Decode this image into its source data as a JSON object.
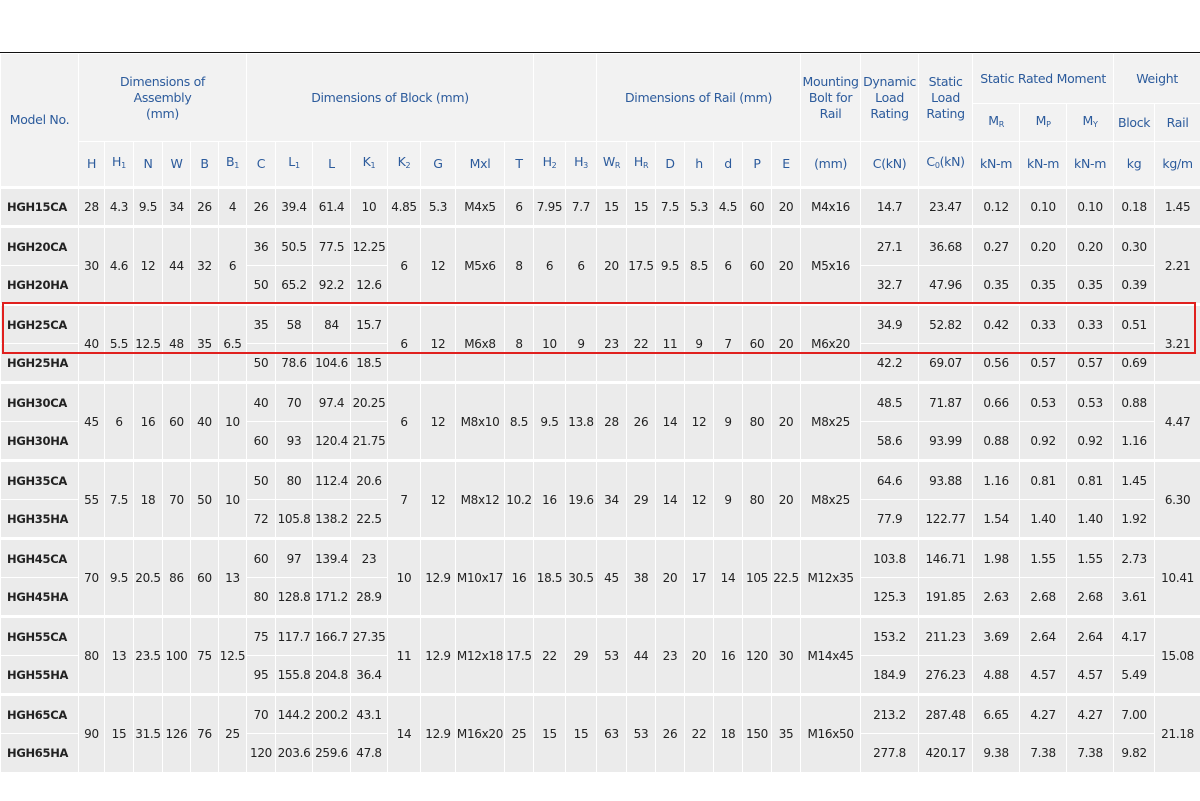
{
  "table": {
    "header": {
      "model_no": "Model No.",
      "assembly": "Dimensions of Assembly (mm)",
      "block": "Dimensions of Block (mm)",
      "rail": "Dimensions of Rail (mm)",
      "bolt": "Mounting Bolt for Rail",
      "dynamic": "Dynamic Load Rating",
      "static": "Static Load Rating",
      "moment": "Static Rated Moment",
      "weight": "Weight",
      "symbols": [
        "H",
        {
          "t": "H",
          "sub": "1"
        },
        "N",
        "W",
        "B",
        {
          "t": "B",
          "sub": "1"
        },
        "C",
        {
          "t": "L",
          "sub": "1"
        },
        "L",
        {
          "t": "K",
          "sub": "1"
        },
        {
          "t": "K",
          "sub": "2"
        },
        "G",
        "Mxl",
        "T",
        {
          "t": "H",
          "sub": "2"
        },
        {
          "t": "H",
          "sub": "3"
        },
        {
          "t": "W",
          "sub": "R"
        },
        {
          "t": "H",
          "sub": "R"
        },
        "D",
        "h",
        "d",
        "P",
        "E"
      ],
      "bolt_unit": "(mm)",
      "dynamic_unit": "C(kN)",
      "static_unit": {
        "t": "C",
        "sub": "0",
        "after": "(kN)"
      },
      "moment_symbols": [
        {
          "t": "M",
          "sub": "R"
        },
        {
          "t": "M",
          "sub": "P"
        },
        {
          "t": "M",
          "sub": "Y"
        }
      ],
      "moment_units": [
        "kN-m",
        "kN-m",
        "kN-m"
      ],
      "weight_cols": [
        "Block",
        "Rail"
      ],
      "weight_units": [
        "kg",
        "kg/m"
      ]
    },
    "groups": [
      {
        "shared": [
          "28",
          "4.3",
          "9.5",
          "34",
          "26",
          "4",
          "4.85",
          "5.3",
          "M4x5",
          "6",
          "7.95",
          "7.7",
          "15",
          "15",
          "7.5",
          "5.3",
          "4.5",
          "60",
          "20",
          "M4x16",
          "1.45"
        ],
        "rows": [
          [
            "HGH15CA",
            "26",
            "39.4",
            "61.4",
            "10",
            "14.7",
            "23.47",
            "0.12",
            "0.10",
            "0.10",
            "0.18"
          ]
        ]
      },
      {
        "shared": [
          "30",
          "4.6",
          "12",
          "44",
          "32",
          "6",
          "6",
          "12",
          "M5x6",
          "8",
          "6",
          "6",
          "20",
          "17.5",
          "9.5",
          "8.5",
          "6",
          "60",
          "20",
          "M5x16",
          "2.21"
        ],
        "rows": [
          [
            "HGH20CA",
            "36",
            "50.5",
            "77.5",
            "12.25",
            "27.1",
            "36.68",
            "0.27",
            "0.20",
            "0.20",
            "0.30"
          ],
          [
            "HGH20HA",
            "50",
            "65.2",
            "92.2",
            "12.6",
            "32.7",
            "47.96",
            "0.35",
            "0.35",
            "0.35",
            "0.39"
          ]
        ]
      },
      {
        "shared": [
          "40",
          "5.5",
          "12.5",
          "48",
          "35",
          "6.5",
          "6",
          "12",
          "M6x8",
          "8",
          "10",
          "9",
          "23",
          "22",
          "11",
          "9",
          "7",
          "60",
          "20",
          "M6x20",
          "3.21"
        ],
        "rows": [
          [
            "HGH25CA",
            "35",
            "58",
            "84",
            "15.7",
            "34.9",
            "52.82",
            "0.42",
            "0.33",
            "0.33",
            "0.51"
          ],
          [
            "HGH25HA",
            "50",
            "78.6",
            "104.6",
            "18.5",
            "42.2",
            "69.07",
            "0.56",
            "0.57",
            "0.57",
            "0.69"
          ]
        ]
      },
      {
        "shared": [
          "45",
          "6",
          "16",
          "60",
          "40",
          "10",
          "6",
          "12",
          "M8x10",
          "8.5",
          "9.5",
          "13.8",
          "28",
          "26",
          "14",
          "12",
          "9",
          "80",
          "20",
          "M8x25",
          "4.47"
        ],
        "rows": [
          [
            "HGH30CA",
            "40",
            "70",
            "97.4",
            "20.25",
            "48.5",
            "71.87",
            "0.66",
            "0.53",
            "0.53",
            "0.88"
          ],
          [
            "HGH30HA",
            "60",
            "93",
            "120.4",
            "21.75",
            "58.6",
            "93.99",
            "0.88",
            "0.92",
            "0.92",
            "1.16"
          ]
        ]
      },
      {
        "shared": [
          "55",
          "7.5",
          "18",
          "70",
          "50",
          "10",
          "7",
          "12",
          "M8x12",
          "10.2",
          "16",
          "19.6",
          "34",
          "29",
          "14",
          "12",
          "9",
          "80",
          "20",
          "M8x25",
          "6.30"
        ],
        "rows": [
          [
            "HGH35CA",
            "50",
            "80",
            "112.4",
            "20.6",
            "64.6",
            "93.88",
            "1.16",
            "0.81",
            "0.81",
            "1.45"
          ],
          [
            "HGH35HA",
            "72",
            "105.8",
            "138.2",
            "22.5",
            "77.9",
            "122.77",
            "1.54",
            "1.40",
            "1.40",
            "1.92"
          ]
        ]
      },
      {
        "shared": [
          "70",
          "9.5",
          "20.5",
          "86",
          "60",
          "13",
          "10",
          "12.9",
          "M10x17",
          "16",
          "18.5",
          "30.5",
          "45",
          "38",
          "20",
          "17",
          "14",
          "105",
          "22.5",
          "M12x35",
          "10.41"
        ],
        "rows": [
          [
            "HGH45CA",
            "60",
            "97",
            "139.4",
            "23",
            "103.8",
            "146.71",
            "1.98",
            "1.55",
            "1.55",
            "2.73"
          ],
          [
            "HGH45HA",
            "80",
            "128.8",
            "171.2",
            "28.9",
            "125.3",
            "191.85",
            "2.63",
            "2.68",
            "2.68",
            "3.61"
          ]
        ]
      },
      {
        "shared": [
          "80",
          "13",
          "23.5",
          "100",
          "75",
          "12.5",
          "11",
          "12.9",
          "M12x18",
          "17.5",
          "22",
          "29",
          "53",
          "44",
          "23",
          "20",
          "16",
          "120",
          "30",
          "M14x45",
          "15.08"
        ],
        "rows": [
          [
            "HGH55CA",
            "75",
            "117.7",
            "166.7",
            "27.35",
            "153.2",
            "211.23",
            "3.69",
            "2.64",
            "2.64",
            "4.17"
          ],
          [
            "HGH55HA",
            "95",
            "155.8",
            "204.8",
            "36.4",
            "184.9",
            "276.23",
            "4.88",
            "4.57",
            "4.57",
            "5.49"
          ]
        ]
      },
      {
        "shared": [
          "90",
          "15",
          "31.5",
          "126",
          "76",
          "25",
          "14",
          "12.9",
          "M16x20",
          "25",
          "15",
          "15",
          "63",
          "53",
          "26",
          "22",
          "18",
          "150",
          "35",
          "M16x50",
          "21.18"
        ],
        "rows": [
          [
            "HGH65CA",
            "70",
            "144.2",
            "200.2",
            "43.1",
            "213.2",
            "287.48",
            "6.65",
            "4.27",
            "4.27",
            "7.00"
          ],
          [
            "HGH65HA",
            "120",
            "203.6",
            "259.6",
            "47.8",
            "277.8",
            "420.17",
            "9.38",
            "7.38",
            "7.38",
            "9.82"
          ]
        ]
      }
    ]
  }
}
